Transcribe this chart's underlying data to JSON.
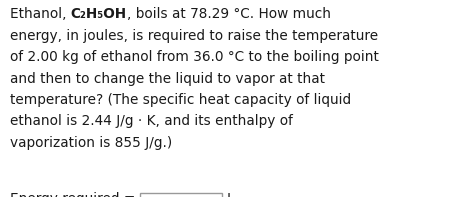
{
  "bg_color": "#ffffff",
  "text_color": "#1a1a1a",
  "font_size": 9.8,
  "line1_plain": "Ethanol, ",
  "line1_bold": "C₂H₅OH",
  "line1_rest": ", boils at 78.29 °C. How much",
  "line2": "energy, in joules, is required to raise the temperature",
  "line3": "of 2.00 kg of ethanol from 36.0 °C to the boiling point",
  "line4": "and then to change the liquid to vapor at that",
  "line5": "temperature? (The specific heat capacity of liquid",
  "line6": "ethanol is 2.44 J/g · K, and its enthalpy of",
  "line7": "vaporization is 855 J/g.)",
  "answer_label": "Energy required = ",
  "answer_unit": "J",
  "box_color": "#ffffff",
  "box_border": "#999999",
  "figsize": [
    4.74,
    1.97
  ],
  "dpi": 100
}
